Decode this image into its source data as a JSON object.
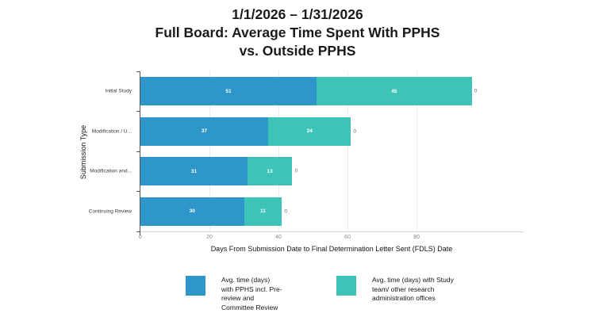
{
  "title": {
    "line1": "1/1/2026 – 1/31/2026",
    "line2": "Full Board: Average Time Spent With PPHS",
    "line3": "vs. Outside PPHS"
  },
  "chart_data": {
    "type": "bar",
    "orientation": "horizontal",
    "stacked": true,
    "title": "1/1/2026 – 1/31/2026 Full Board: Average Time Spent With PPHS vs. Outside PPHS",
    "categories": [
      "Initial Study",
      "Modification / U...",
      "Modification and...",
      "Continuing Review"
    ],
    "series": [
      {
        "name": "Avg. time (days) with PPHS incl. Pre-review and Committee Review",
        "color": "#2E96C8",
        "values": [
          51,
          37,
          31,
          30
        ]
      },
      {
        "name": "Avg. time (days) with Study team/ other research administration offices",
        "color": "#3EC3B8",
        "values": [
          45,
          24,
          13,
          11
        ]
      }
    ],
    "bar_end_labels": [
      "0",
      "0",
      "0",
      "0"
    ],
    "xlabel": "Days From Submission Date to Final Determination Letter Sent (FDLS) Date",
    "ylabel": "Submission Type",
    "x_ticks": [
      0,
      20,
      40,
      60,
      80
    ],
    "xlim": [
      0,
      111
    ],
    "grid": "vertical",
    "legend_position": "bottom"
  },
  "legend": {
    "items": [
      {
        "label_lines": "Avg. time (days)\nwith PPHS incl. Pre-\nreview and\nCommittee Review",
        "color": "#2E96C8"
      },
      {
        "label_lines": "Avg. time (days) with Study\nteam/ other research\nadministration offices",
        "color": "#3EC3B8"
      }
    ]
  },
  "colors": {
    "pphs_blue": "#2E96C8",
    "study_teal": "#3EC3B8",
    "gridline": "#ececec",
    "axis_line": "#555555",
    "tick_label": "#8a8a8a",
    "background": "#ffffff"
  }
}
